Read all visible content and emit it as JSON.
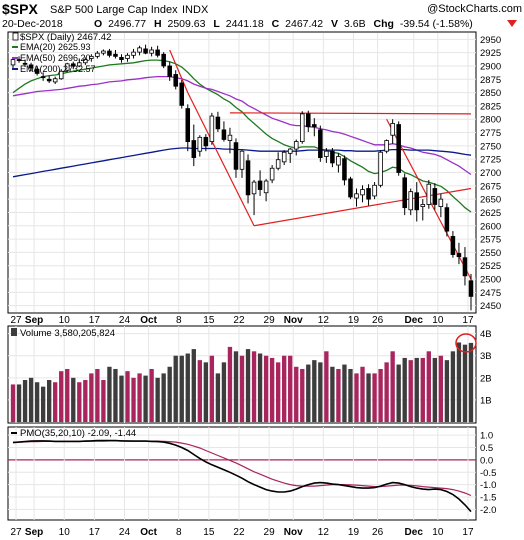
{
  "header": {
    "symbol": "$SPX",
    "name": "S&P 500 Large Cap Index",
    "exchange": "INDX",
    "date": "20-Dec-2018",
    "open_label": "O",
    "open": "2496.77",
    "high_label": "H",
    "high": "2509.63",
    "low_label": "L",
    "low": "2441.18",
    "close_label": "C",
    "close": "2467.42",
    "volume_label": "V",
    "volume": "3.6B",
    "change_label": "Chg",
    "change": "-39.54 (-1.58%)",
    "watermark": "@StockCharts.com"
  },
  "colors": {
    "up_candle": "#ffffff",
    "down_candle": "#000000",
    "ema20": "#1f7a1f",
    "ema50": "#9b30c8",
    "ema200": "#0a1a8c",
    "trendline": "#e02020",
    "volume_up": "#a8255e",
    "volume_down": "#3d3d3d",
    "pmo": "#000000",
    "pmo_signal": "#a8255e",
    "zero_line": "#a8255e",
    "highlight": "#e02020"
  },
  "price_panel": {
    "legend": [
      {
        "label": "$SPX (Daily) 2467.42",
        "swatch": "candle"
      },
      {
        "label": "EMA(20) 2625.93",
        "color": "#1f7a1f"
      },
      {
        "label": "EMA(50) 2696.20",
        "color": "#9b30c8"
      },
      {
        "label": "EMA(200) 2732.57",
        "color": "#0a1a8c"
      }
    ],
    "y_ticks": [
      "2950",
      "2925",
      "2900",
      "2875",
      "2850",
      "2825",
      "2800",
      "2775",
      "2750",
      "2725",
      "2700",
      "2675",
      "2650",
      "2625",
      "2600",
      "2575",
      "2550",
      "2525",
      "2500",
      "2475",
      "2450"
    ]
  },
  "volume_panel": {
    "legend": "Volume 3,580,205,824",
    "y_ticks": [
      "4B",
      "3B",
      "2B",
      "1B"
    ]
  },
  "pmo_panel": {
    "legend": "PMO(35,20,10) -2.09, -1.44",
    "y_ticks": [
      "1.0",
      "0.5",
      "0.0",
      "-0.5",
      "-1.0",
      "-1.5",
      "-2.0"
    ]
  },
  "x_axis": {
    "labels": [
      "27",
      "Sep",
      "10",
      "17",
      "24",
      "Oct",
      "8",
      "15",
      "22",
      "29",
      "Nov",
      "12",
      "19",
      "26",
      "Dec",
      "10",
      "17"
    ]
  },
  "chart_data": {
    "type": "candlestick",
    "title": "$SPX S&P 500 Large Cap Index INDX",
    "period": "Daily",
    "ylim": [
      2440,
      2960
    ],
    "candles": [
      {
        "o": 2902,
        "h": 2916,
        "l": 2895,
        "c": 2912
      },
      {
        "o": 2912,
        "h": 2918,
        "l": 2906,
        "c": 2910
      },
      {
        "o": 2905,
        "h": 2912,
        "l": 2898,
        "c": 2904
      },
      {
        "o": 2902,
        "h": 2906,
        "l": 2890,
        "c": 2896
      },
      {
        "o": 2894,
        "h": 2900,
        "l": 2882,
        "c": 2886
      },
      {
        "o": 2880,
        "h": 2888,
        "l": 2872,
        "c": 2878
      },
      {
        "o": 2875,
        "h": 2882,
        "l": 2868,
        "c": 2872
      },
      {
        "o": 2870,
        "h": 2880,
        "l": 2866,
        "c": 2876
      },
      {
        "o": 2876,
        "h": 2894,
        "l": 2874,
        "c": 2890
      },
      {
        "o": 2892,
        "h": 2906,
        "l": 2888,
        "c": 2904
      },
      {
        "o": 2904,
        "h": 2908,
        "l": 2894,
        "c": 2900
      },
      {
        "o": 2900,
        "h": 2914,
        "l": 2898,
        "c": 2906
      },
      {
        "o": 2906,
        "h": 2916,
        "l": 2902,
        "c": 2912
      },
      {
        "o": 2914,
        "h": 2922,
        "l": 2908,
        "c": 2918
      },
      {
        "o": 2918,
        "h": 2928,
        "l": 2914,
        "c": 2924
      },
      {
        "o": 2924,
        "h": 2931,
        "l": 2920,
        "c": 2928
      },
      {
        "o": 2928,
        "h": 2932,
        "l": 2916,
        "c": 2920
      },
      {
        "o": 2922,
        "h": 2930,
        "l": 2914,
        "c": 2918
      },
      {
        "o": 2916,
        "h": 2922,
        "l": 2906,
        "c": 2912
      },
      {
        "o": 2914,
        "h": 2924,
        "l": 2908,
        "c": 2920
      },
      {
        "o": 2920,
        "h": 2932,
        "l": 2914,
        "c": 2926
      },
      {
        "o": 2926,
        "h": 2938,
        "l": 2920,
        "c": 2934
      },
      {
        "o": 2932,
        "h": 2940,
        "l": 2922,
        "c": 2924
      },
      {
        "o": 2924,
        "h": 2936,
        "l": 2918,
        "c": 2930
      },
      {
        "o": 2930,
        "h": 2938,
        "l": 2916,
        "c": 2920
      },
      {
        "o": 2922,
        "h": 2926,
        "l": 2896,
        "c": 2900
      },
      {
        "o": 2900,
        "h": 2908,
        "l": 2872,
        "c": 2880
      },
      {
        "o": 2884,
        "h": 2892,
        "l": 2856,
        "c": 2862
      },
      {
        "o": 2868,
        "h": 2874,
        "l": 2820,
        "c": 2826
      },
      {
        "o": 2820,
        "h": 2828,
        "l": 2740,
        "c": 2758
      },
      {
        "o": 2760,
        "h": 2790,
        "l": 2712,
        "c": 2728
      },
      {
        "o": 2740,
        "h": 2770,
        "l": 2730,
        "c": 2766
      },
      {
        "o": 2766,
        "h": 2772,
        "l": 2740,
        "c": 2750
      },
      {
        "o": 2758,
        "h": 2812,
        "l": 2752,
        "c": 2806
      },
      {
        "o": 2804,
        "h": 2814,
        "l": 2776,
        "c": 2782
      },
      {
        "o": 2780,
        "h": 2796,
        "l": 2758,
        "c": 2762
      },
      {
        "o": 2760,
        "h": 2784,
        "l": 2736,
        "c": 2770
      },
      {
        "o": 2756,
        "h": 2764,
        "l": 2690,
        "c": 2706
      },
      {
        "o": 2706,
        "h": 2742,
        "l": 2690,
        "c": 2740
      },
      {
        "o": 2722,
        "h": 2734,
        "l": 2642,
        "c": 2658
      },
      {
        "o": 2660,
        "h": 2686,
        "l": 2620,
        "c": 2682
      },
      {
        "o": 2684,
        "h": 2704,
        "l": 2656,
        "c": 2668
      },
      {
        "o": 2662,
        "h": 2688,
        "l": 2646,
        "c": 2684
      },
      {
        "o": 2686,
        "h": 2714,
        "l": 2680,
        "c": 2708
      },
      {
        "o": 2708,
        "h": 2738,
        "l": 2704,
        "c": 2724
      },
      {
        "o": 2720,
        "h": 2742,
        "l": 2714,
        "c": 2738
      },
      {
        "o": 2736,
        "h": 2746,
        "l": 2718,
        "c": 2744
      },
      {
        "o": 2744,
        "h": 2762,
        "l": 2732,
        "c": 2758
      },
      {
        "o": 2758,
        "h": 2815,
        "l": 2754,
        "c": 2810
      },
      {
        "o": 2810,
        "h": 2816,
        "l": 2776,
        "c": 2786
      },
      {
        "o": 2790,
        "h": 2802,
        "l": 2768,
        "c": 2786
      },
      {
        "o": 2780,
        "h": 2788,
        "l": 2720,
        "c": 2728
      },
      {
        "o": 2730,
        "h": 2746,
        "l": 2718,
        "c": 2740
      },
      {
        "o": 2740,
        "h": 2746,
        "l": 2710,
        "c": 2718
      },
      {
        "o": 2714,
        "h": 2736,
        "l": 2700,
        "c": 2730
      },
      {
        "o": 2726,
        "h": 2732,
        "l": 2676,
        "c": 2686
      },
      {
        "o": 2688,
        "h": 2692,
        "l": 2650,
        "c": 2654
      },
      {
        "o": 2652,
        "h": 2670,
        "l": 2636,
        "c": 2660
      },
      {
        "o": 2658,
        "h": 2676,
        "l": 2644,
        "c": 2668
      },
      {
        "o": 2670,
        "h": 2678,
        "l": 2638,
        "c": 2650
      },
      {
        "o": 2656,
        "h": 2682,
        "l": 2650,
        "c": 2676
      },
      {
        "o": 2676,
        "h": 2742,
        "l": 2672,
        "c": 2738
      },
      {
        "o": 2740,
        "h": 2762,
        "l": 2736,
        "c": 2760
      },
      {
        "o": 2770,
        "h": 2800,
        "l": 2754,
        "c": 2792
      },
      {
        "o": 2790,
        "h": 2796,
        "l": 2694,
        "c": 2700
      },
      {
        "o": 2690,
        "h": 2698,
        "l": 2620,
        "c": 2634
      },
      {
        "o": 2630,
        "h": 2670,
        "l": 2620,
        "c": 2664
      },
      {
        "o": 2662,
        "h": 2682,
        "l": 2608,
        "c": 2630
      },
      {
        "o": 2636,
        "h": 2650,
        "l": 2610,
        "c": 2640
      },
      {
        "o": 2640,
        "h": 2686,
        "l": 2632,
        "c": 2678
      },
      {
        "o": 2670,
        "h": 2680,
        "l": 2630,
        "c": 2640
      },
      {
        "o": 2636,
        "h": 2660,
        "l": 2616,
        "c": 2650
      },
      {
        "o": 2634,
        "h": 2642,
        "l": 2580,
        "c": 2590
      },
      {
        "o": 2580,
        "h": 2590,
        "l": 2540,
        "c": 2546
      },
      {
        "o": 2548,
        "h": 2568,
        "l": 2528,
        "c": 2542
      },
      {
        "o": 2540,
        "h": 2560,
        "l": 2488,
        "c": 2506
      },
      {
        "o": 2496.77,
        "h": 2509.63,
        "l": 2441.18,
        "c": 2467.42
      }
    ],
    "ema": [
      {
        "name": "EMA(20)",
        "last": 2625.93,
        "values": [
          2850,
          2858,
          2866,
          2872,
          2876,
          2880,
          2882,
          2883,
          2885,
          2888,
          2890,
          2892,
          2894,
          2896,
          2898,
          2900,
          2902,
          2903,
          2904,
          2905,
          2906,
          2908,
          2910,
          2911,
          2911,
          2910,
          2908,
          2904,
          2898,
          2888,
          2876,
          2866,
          2858,
          2852,
          2846,
          2838,
          2832,
          2822,
          2814,
          2802,
          2792,
          2782,
          2772,
          2764,
          2758,
          2752,
          2748,
          2746,
          2748,
          2748,
          2748,
          2744,
          2742,
          2738,
          2736,
          2730,
          2722,
          2716,
          2710,
          2702,
          2698,
          2700,
          2704,
          2710,
          2708,
          2700,
          2696,
          2690,
          2684,
          2682,
          2678,
          2674,
          2666,
          2655,
          2645,
          2634,
          2625.93
        ]
      },
      {
        "name": "EMA(50)",
        "last": 2696.2,
        "values": [
          2844,
          2846,
          2848,
          2850,
          2852,
          2853,
          2854,
          2855,
          2856,
          2858,
          2860,
          2862,
          2863,
          2865,
          2866,
          2868,
          2870,
          2871,
          2872,
          2874,
          2875,
          2876,
          2878,
          2879,
          2880,
          2880,
          2880,
          2878,
          2876,
          2872,
          2866,
          2862,
          2858,
          2856,
          2852,
          2848,
          2844,
          2838,
          2834,
          2826,
          2820,
          2814,
          2808,
          2802,
          2798,
          2794,
          2790,
          2788,
          2788,
          2786,
          2785,
          2782,
          2780,
          2777,
          2775,
          2772,
          2768,
          2764,
          2760,
          2756,
          2752,
          2752,
          2752,
          2754,
          2752,
          2748,
          2746,
          2742,
          2738,
          2736,
          2734,
          2730,
          2724,
          2718,
          2712,
          2704,
          2696.2
        ]
      },
      {
        "name": "EMA(200)",
        "last": 2732.57,
        "values": [
          2692,
          2694,
          2696,
          2698,
          2700,
          2702,
          2704,
          2706,
          2708,
          2710,
          2712,
          2714,
          2716,
          2718,
          2720,
          2722,
          2724,
          2726,
          2728,
          2730,
          2732,
          2734,
          2736,
          2738,
          2740,
          2742,
          2744,
          2745,
          2746,
          2746,
          2745,
          2745,
          2745,
          2745,
          2745,
          2744,
          2744,
          2743,
          2743,
          2742,
          2741,
          2740,
          2740,
          2740,
          2740,
          2740,
          2740,
          2740,
          2741,
          2742,
          2742,
          2742,
          2742,
          2742,
          2742,
          2741,
          2741,
          2740,
          2740,
          2740,
          2740,
          2741,
          2742,
          2743,
          2743,
          2743,
          2742,
          2742,
          2742,
          2742,
          2741,
          2740,
          2739,
          2738,
          2736,
          2734,
          2732.57
        ]
      }
    ],
    "trendlines": [
      {
        "from": [
          26,
          2930
        ],
        "to": [
          29,
          2850
        ]
      },
      {
        "from": [
          29,
          2850
        ],
        "to": [
          40,
          2600
        ]
      },
      {
        "from": [
          40,
          2600
        ],
        "to": [
          76,
          2670
        ]
      },
      {
        "from": [
          36,
          2812
        ],
        "to": [
          76,
          2810
        ]
      },
      {
        "from": [
          62,
          2800
        ],
        "to": [
          76,
          2500
        ]
      }
    ],
    "volume": [
      1.7,
      1.7,
      1.9,
      2.0,
      1.8,
      1.6,
      1.9,
      1.8,
      2.3,
      2.4,
      2.0,
      1.8,
      1.9,
      2.2,
      2.4,
      1.9,
      2.5,
      2.4,
      2.1,
      2.3,
      2.0,
      2.2,
      2.1,
      2.4,
      2.0,
      2.2,
      2.5,
      3.0,
      3.0,
      3.1,
      3.3,
      2.8,
      2.7,
      3.0,
      2.2,
      2.7,
      3.4,
      3.2,
      3.0,
      3.3,
      3.2,
      3.1,
      3.0,
      2.9,
      2.7,
      3.0,
      3.0,
      2.5,
      2.4,
      2.6,
      2.8,
      2.7,
      3.2,
      2.5,
      2.4,
      2.6,
      2.4,
      2.2,
      2.5,
      2.2,
      2.2,
      2.4,
      2.7,
      3.2,
      2.6,
      2.9,
      2.8,
      2.9,
      2.9,
      3.2,
      2.9,
      3.0,
      2.8,
      3.2,
      3.6,
      3.5,
      3.58
    ],
    "pmo": {
      "name": "PMO(35,20,10)",
      "values": [
        0.7,
        0.72,
        0.74,
        0.76,
        0.77,
        0.77,
        0.76,
        0.75,
        0.75,
        0.75,
        0.75,
        0.75,
        0.76,
        0.77,
        0.78,
        0.78,
        0.78,
        0.78,
        0.77,
        0.76,
        0.76,
        0.76,
        0.76,
        0.75,
        0.74,
        0.72,
        0.67,
        0.6,
        0.5,
        0.38,
        0.22,
        0.06,
        -0.08,
        -0.2,
        -0.3,
        -0.4,
        -0.5,
        -0.62,
        -0.74,
        -0.88,
        -1.0,
        -1.1,
        -1.2,
        -1.26,
        -1.3,
        -1.3,
        -1.26,
        -1.18,
        -1.08,
        -1.0,
        -0.94,
        -0.92,
        -0.94,
        -0.98,
        -1.0,
        -1.04,
        -1.08,
        -1.12,
        -1.14,
        -1.14,
        -1.12,
        -1.06,
        -0.98,
        -0.92,
        -0.94,
        -1.0,
        -1.08,
        -1.14,
        -1.18,
        -1.2,
        -1.18,
        -1.2,
        -1.28,
        -1.4,
        -1.58,
        -1.82,
        -2.09
      ],
      "signal_values": [
        0.72,
        0.72,
        0.73,
        0.74,
        0.74,
        0.75,
        0.75,
        0.75,
        0.75,
        0.75,
        0.75,
        0.75,
        0.75,
        0.76,
        0.76,
        0.76,
        0.77,
        0.77,
        0.77,
        0.77,
        0.76,
        0.76,
        0.76,
        0.76,
        0.76,
        0.75,
        0.74,
        0.72,
        0.68,
        0.63,
        0.56,
        0.48,
        0.38,
        0.28,
        0.18,
        0.08,
        -0.02,
        -0.12,
        -0.24,
        -0.36,
        -0.48,
        -0.58,
        -0.68,
        -0.78,
        -0.86,
        -0.94,
        -1.0,
        -1.04,
        -1.06,
        -1.06,
        -1.06,
        -1.04,
        -1.02,
        -1.0,
        -1.0,
        -1.0,
        -1.01,
        -1.02,
        -1.04,
        -1.06,
        -1.08,
        -1.08,
        -1.06,
        -1.04,
        -1.02,
        -1.02,
        -1.03,
        -1.05,
        -1.08,
        -1.1,
        -1.12,
        -1.14,
        -1.16,
        -1.2,
        -1.26,
        -1.34,
        -1.44
      ],
      "last": -2.09,
      "signal_last": -1.44
    }
  }
}
